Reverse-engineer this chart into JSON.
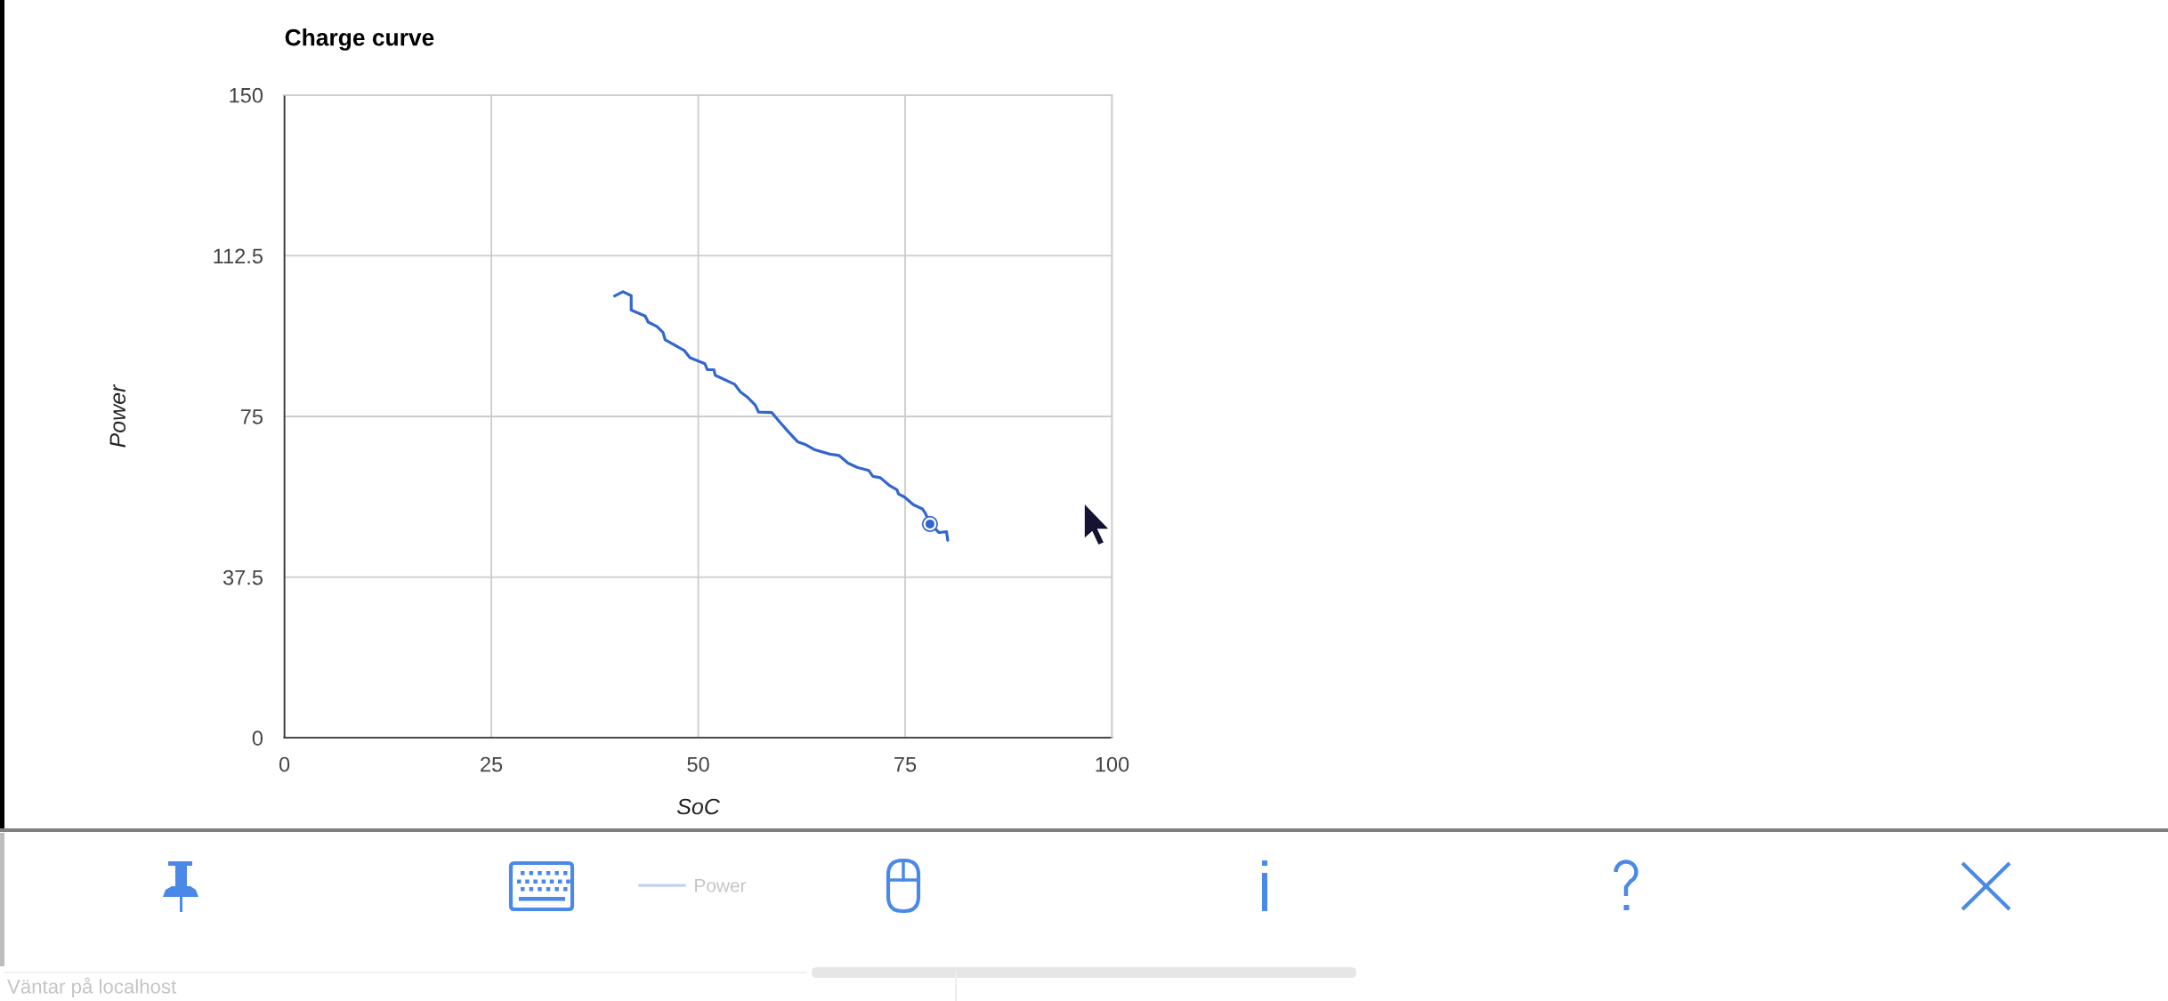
{
  "chart_data": {
    "type": "line",
    "title": "Charge curve",
    "xlabel": "SoC",
    "ylabel": "Power",
    "xlim": [
      0,
      100
    ],
    "xticks": [
      0,
      25,
      50,
      75,
      100
    ],
    "ylim": [
      0,
      150
    ],
    "yticks": [
      0,
      37.5,
      75,
      112.5,
      150
    ],
    "grid": true,
    "legend": "bottom",
    "line_style": "solid",
    "series": [
      {
        "name": "Power",
        "color": "#3366cc",
        "x": [
          39.9,
          40.9,
          41.9,
          41.9,
          43.6,
          43.95,
          45.0,
          45.75,
          46.0,
          48.3,
          49.0,
          50.8,
          51.1,
          51.9,
          52.05,
          54.4,
          55.1,
          56.0,
          56.9,
          57.3,
          58.9,
          59.8,
          60.9,
          62.0,
          63.0,
          64.1,
          65.9,
          67.0,
          68.1,
          69.2,
          70.6,
          71.1,
          72.0,
          73.1,
          74.0,
          74.2,
          74.9,
          76.0,
          77.1,
          77.45,
          78.0,
          79.1,
          80.0,
          80.15
        ],
        "values": [
          103.1,
          104.1,
          103.2,
          99.8,
          98.4,
          97.0,
          96.0,
          94.6,
          92.9,
          90.4,
          88.7,
          87.3,
          85.9,
          85.9,
          84.6,
          82.5,
          80.7,
          79.4,
          77.6,
          76.0,
          75.9,
          73.8,
          71.4,
          69.1,
          68.4,
          67.2,
          66.2,
          65.9,
          64.1,
          63.1,
          62.4,
          61.0,
          60.7,
          58.9,
          57.9,
          56.9,
          56.2,
          54.4,
          53.4,
          52.4,
          49.9,
          47.9,
          48.1,
          46.1
        ]
      },
      {
        "type": "scatter",
        "color": "#3366cc",
        "x": [
          78.0
        ],
        "values": [
          49.9
        ]
      }
    ],
    "annotations": [
      "Väntar på localhost"
    ]
  }
}
